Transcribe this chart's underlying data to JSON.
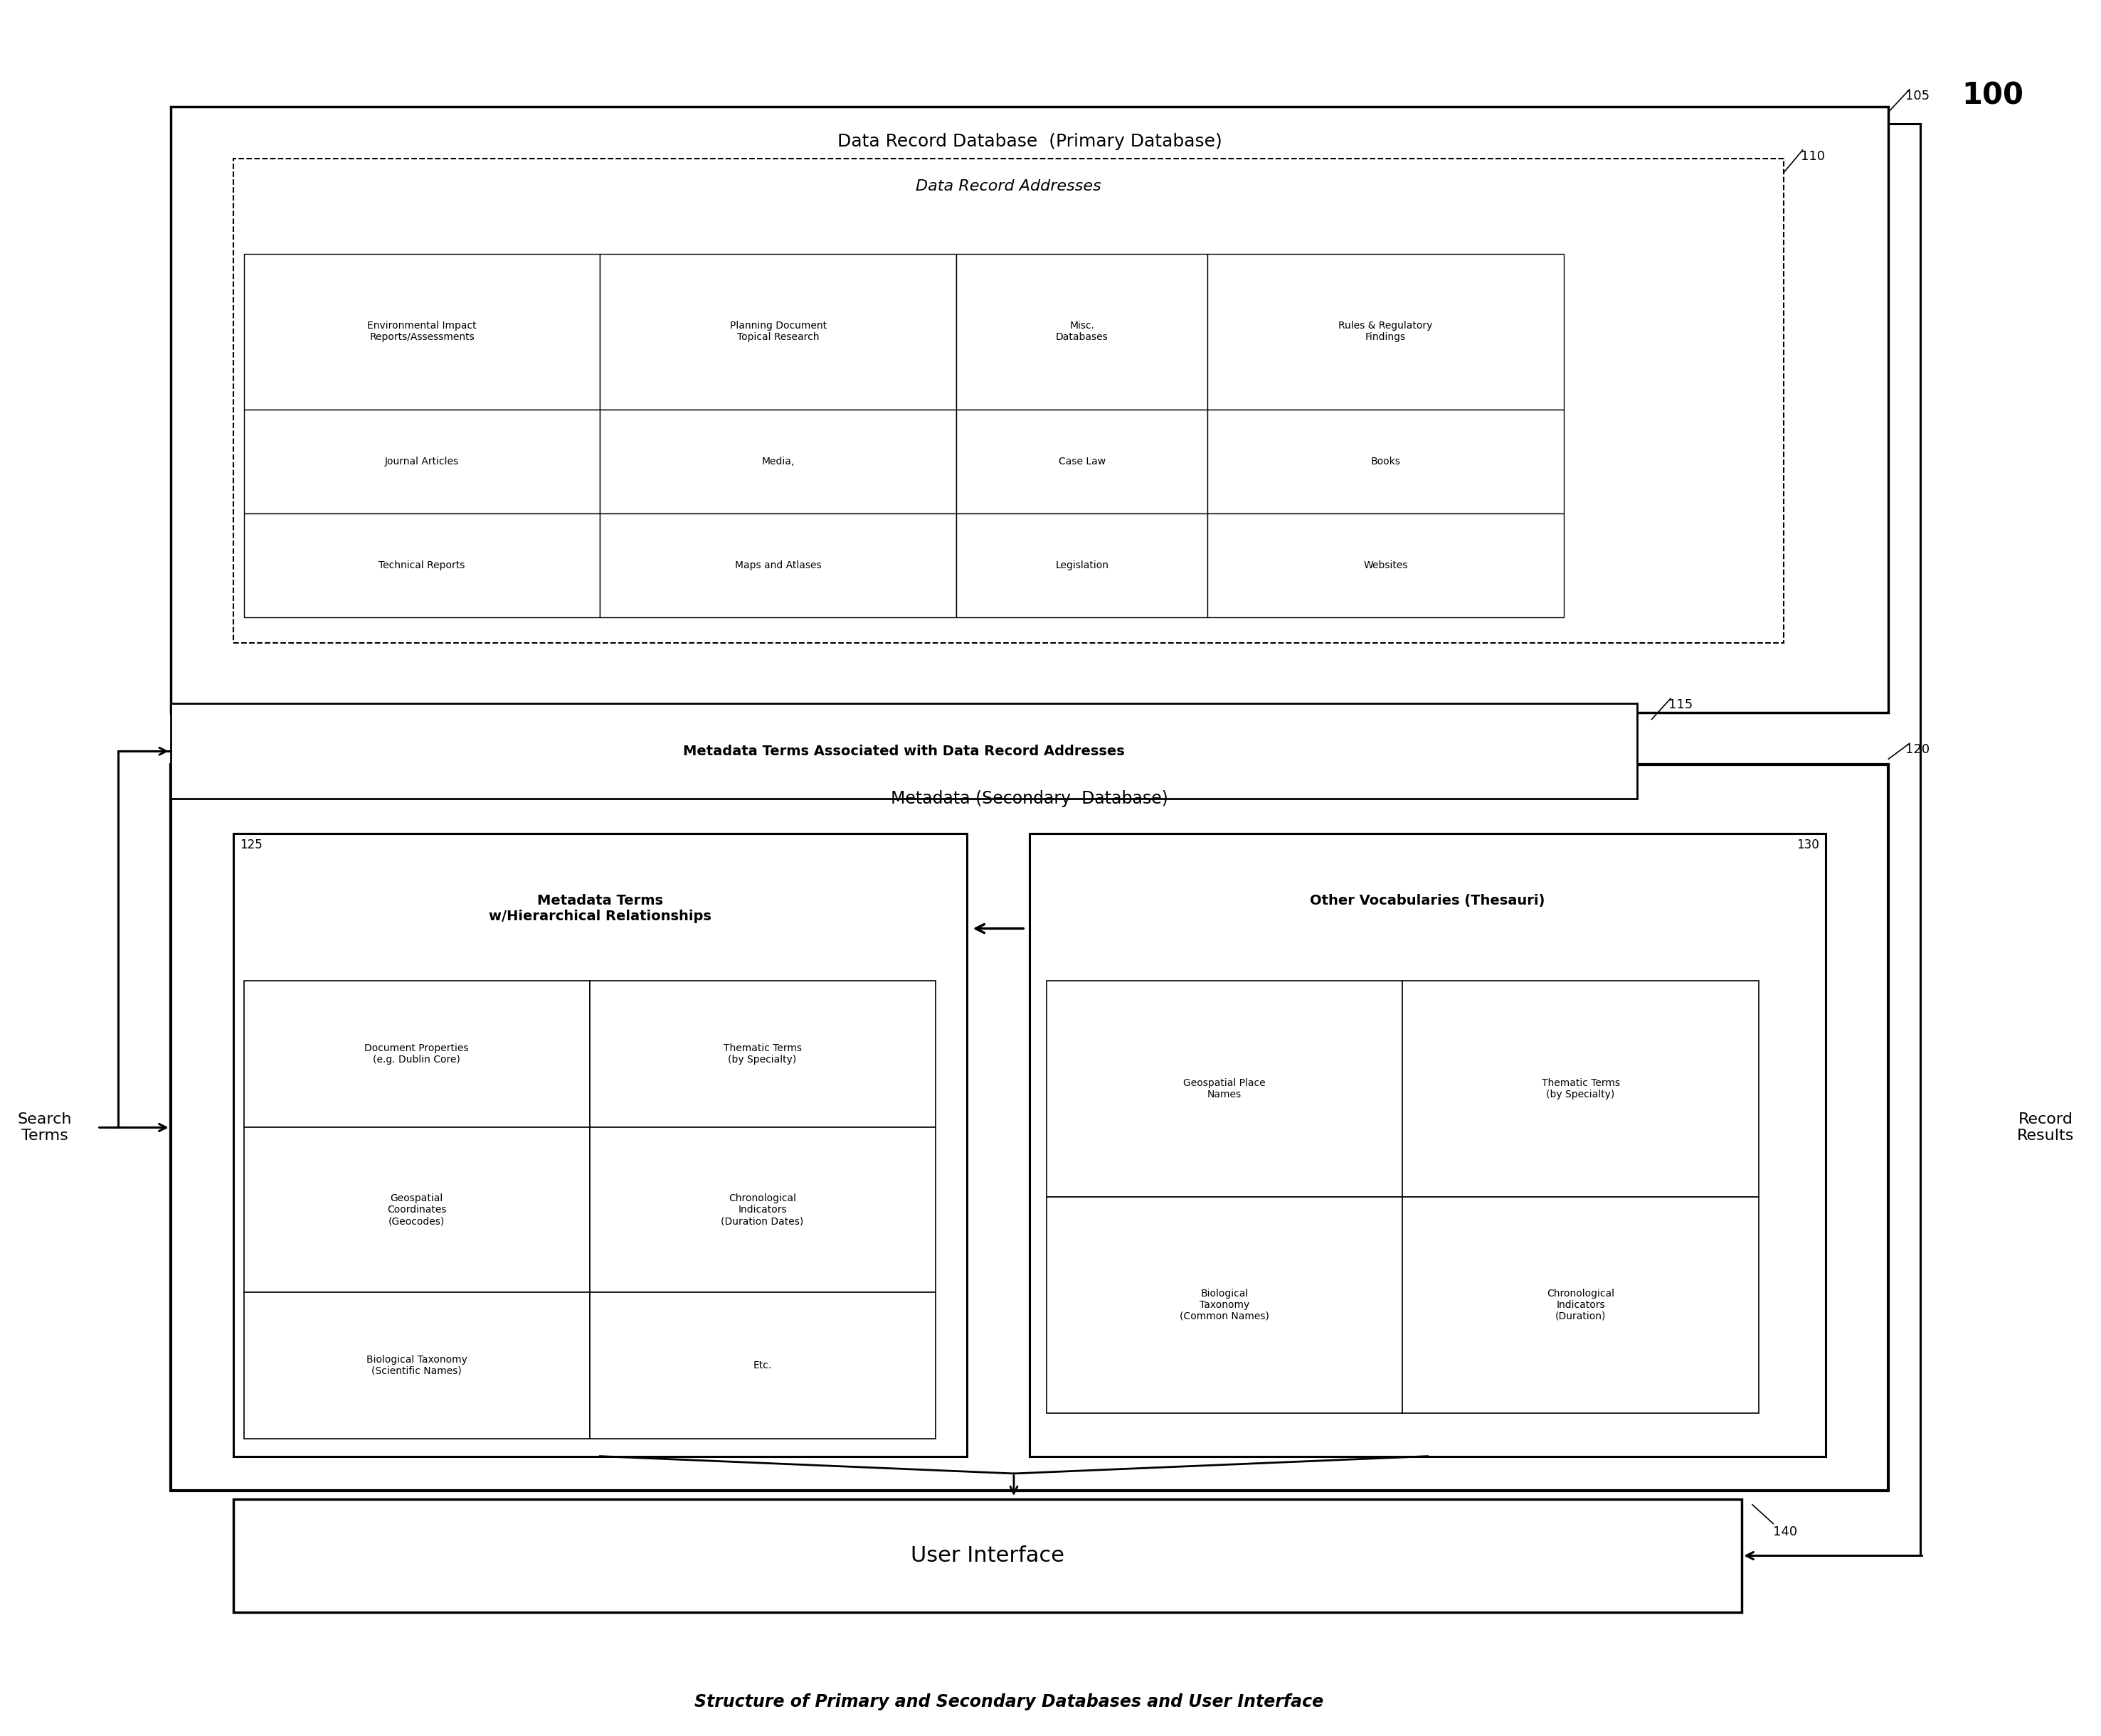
{
  "bg_color": "#ffffff",
  "fig_width": 29.53,
  "fig_height": 24.41,
  "title": "Structure of Primary and Secondary Databases and User Interface",
  "label_100": "100",
  "label_105": "105",
  "label_110": "110",
  "label_115": "115",
  "label_120": "120",
  "label_125": "125",
  "label_130": "130",
  "label_140": "140",
  "box105_title": "Data Record Database  (Primary Database)",
  "box110_title": "Data Record Addresses",
  "grid_cells": [
    [
      "Environmental Impact\nReports/Assessments",
      "Planning Document\nTopical Research",
      "Misc.\nDatabases",
      "Rules & Regulatory\nFindings"
    ],
    [
      "Journal Articles",
      "Media,",
      "Case Law",
      "Books"
    ],
    [
      "Technical Reports",
      "Maps and Atlases",
      "Legislation",
      "Websites"
    ]
  ],
  "box115_title": "Metadata Terms Associated with Data Record Addresses",
  "box120_title": "Metadata (Secondary  Database)",
  "box125_title": "Metadata Terms\nw/Hierarchical Relationships",
  "box130_title": "Other Vocabularies (Thesauri)",
  "meta_grid": [
    [
      "Document Properties\n(e.g. Dublin Core)",
      "Thematic Terms\n(by Specialty)"
    ],
    [
      "Geospatial\nCoordinates\n(Geocodes)",
      "Chronological\nIndicators\n(Duration Dates)"
    ],
    [
      "Biological Taxonomy\n(Scientific Names)",
      "Etc."
    ]
  ],
  "thes_grid": [
    [
      "Geospatial Place\nNames",
      "Thematic Terms\n(by Specialty)"
    ],
    [
      "Biological\nTaxonomy\n(Common Names)",
      "Chronological\nIndicators\n(Duration)"
    ]
  ],
  "box140_title": "User Interface",
  "search_terms": "Search\nTerms",
  "record_results": "Record\nResults"
}
